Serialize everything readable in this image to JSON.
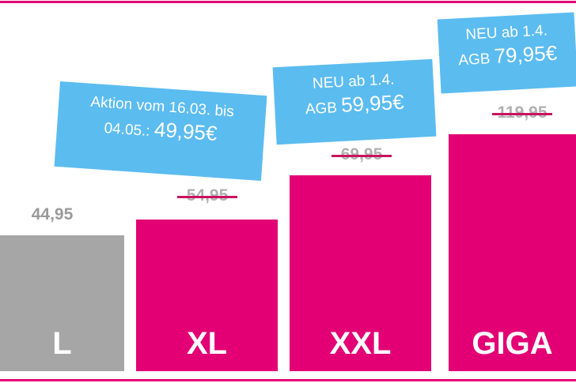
{
  "tariffs": [
    {
      "name": "L",
      "price": "44,95"
    },
    {
      "name": "XL",
      "old_price": "54,95",
      "offer": {
        "line1": "Aktion vom 16.03. bis",
        "line2": "04.05.:",
        "price": "49,95€"
      }
    },
    {
      "name": "XXL",
      "old_price": "69,95",
      "offer": {
        "line1": "NEU ab 1.4.",
        "line2": "AGB",
        "price": "59,95€"
      }
    },
    {
      "name": "GIGA",
      "old_price": "119,95",
      "offer": {
        "line1": "NEU ab 1.4.",
        "line2": "AGB",
        "price": "79,95€"
      }
    }
  ]
}
